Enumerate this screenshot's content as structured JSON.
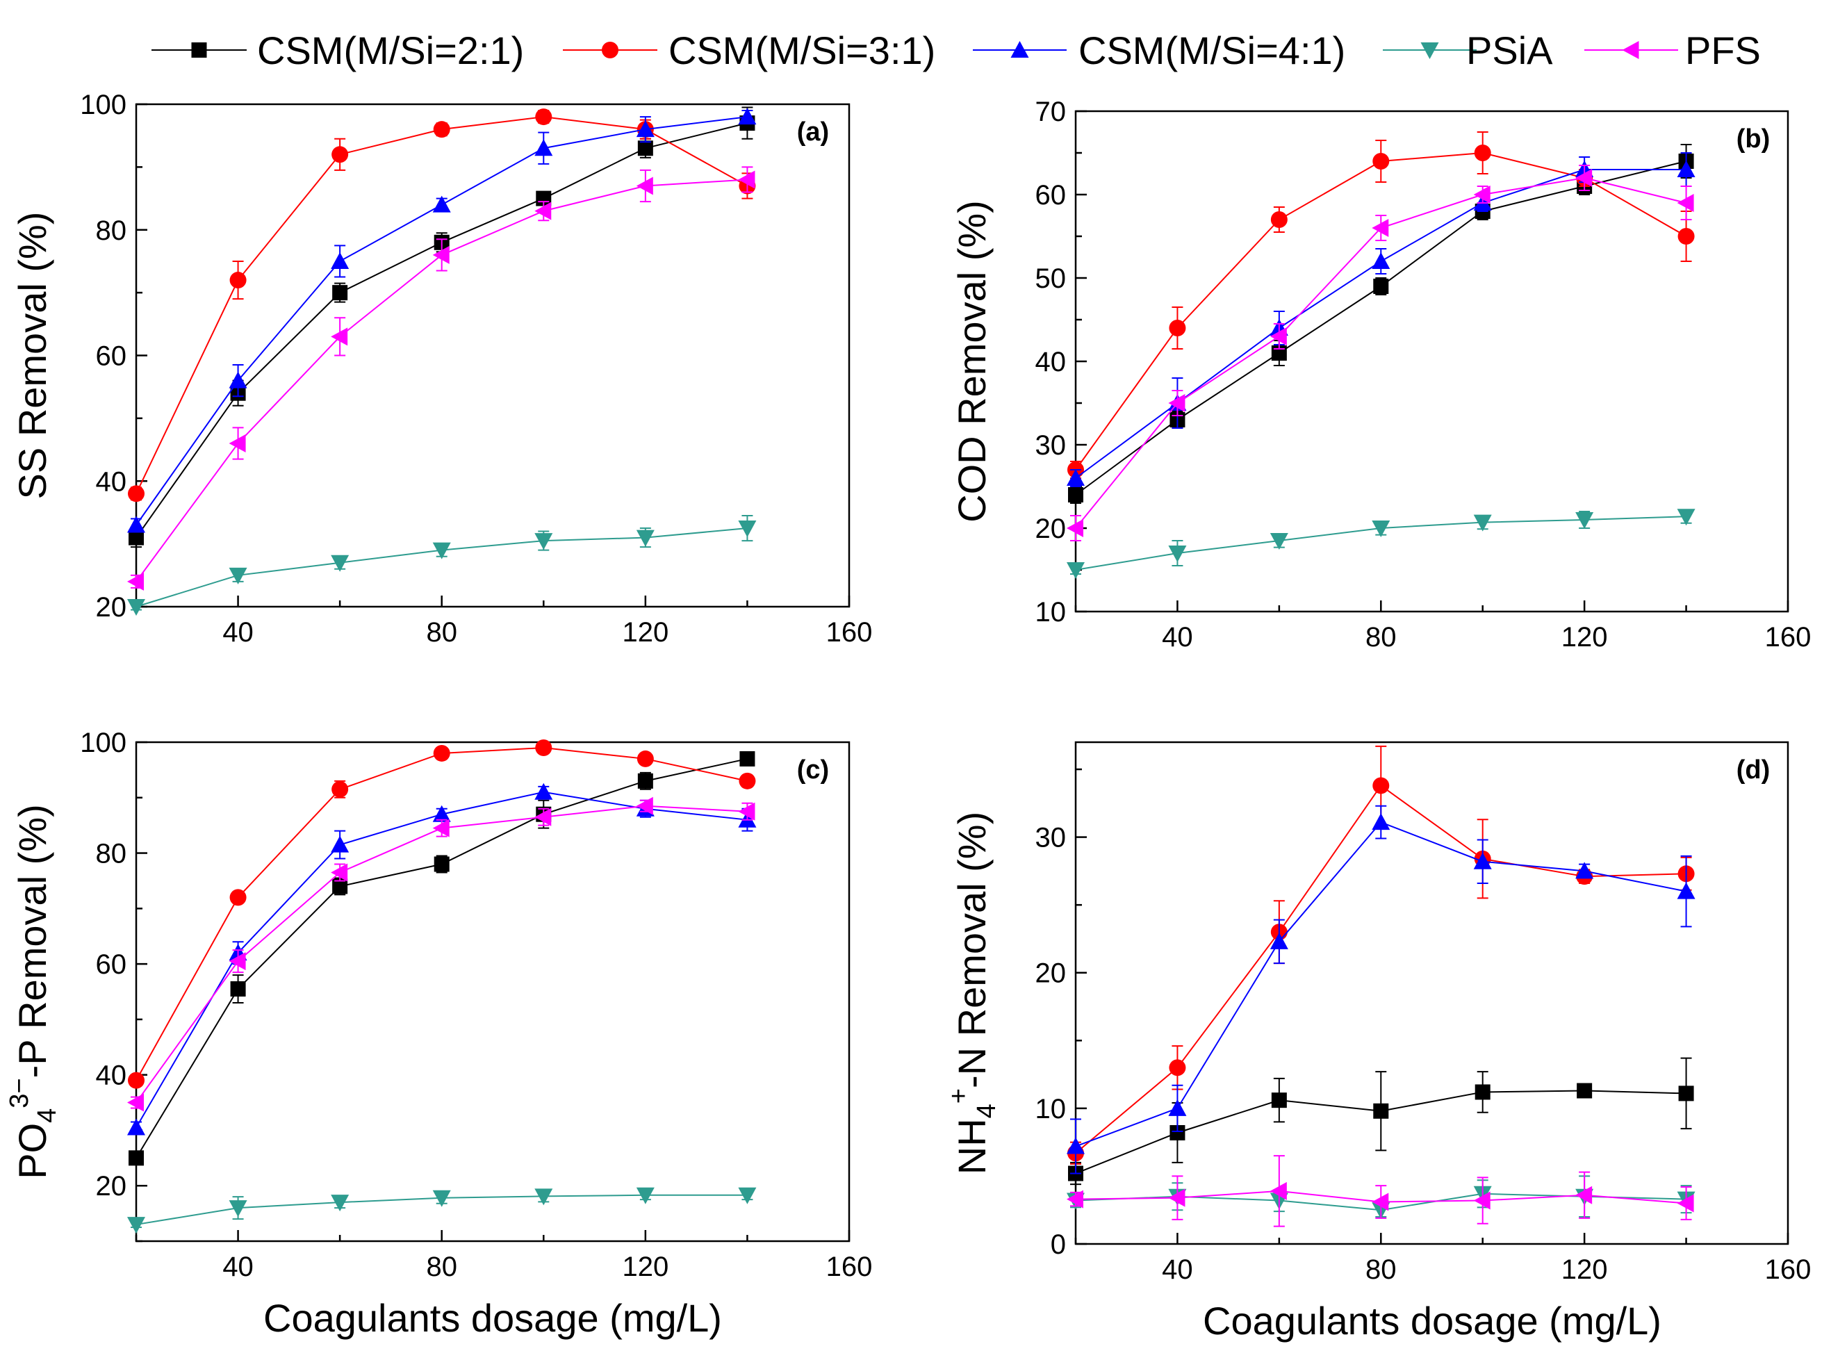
{
  "legend": {
    "placement": "top",
    "entries": [
      {
        "name": "CSM(M/Si=2:1)",
        "color": "#000000",
        "marker": "square"
      },
      {
        "name": "CSM(M/Si=3:1)",
        "color": "#ff0000",
        "marker": "circle"
      },
      {
        "name": "CSM(M/Si=4:1)",
        "color": "#0000ff",
        "marker": "triangle-up"
      },
      {
        "name": "PSiA",
        "color": "#2e9c8f",
        "marker": "triangle-down"
      },
      {
        "name": "PFS",
        "color": "#ff00ff",
        "marker": "triangle-left"
      }
    ]
  },
  "chart_data": [
    {
      "type": "line",
      "panel": "(a)",
      "xlabel": "",
      "ylabel": "SS Removal (%)",
      "xlim": [
        20,
        160
      ],
      "ylim": [
        20,
        100
      ],
      "xticks": [
        40,
        80,
        120,
        160
      ],
      "yticks": [
        20,
        40,
        60,
        80,
        100
      ],
      "x": [
        20,
        40,
        60,
        80,
        100,
        120,
        140
      ],
      "series": [
        {
          "name": "CSM(M/Si=2:1)",
          "values": [
            31,
            54,
            70,
            78,
            85,
            93,
            97
          ],
          "errors": [
            1.5,
            2,
            1.5,
            1.5,
            1,
            1.5,
            2.5
          ]
        },
        {
          "name": "CSM(M/Si=3:1)",
          "values": [
            38,
            72,
            92,
            96,
            98,
            96,
            87
          ],
          "errors": [
            1,
            3,
            2.5,
            1,
            1,
            1.5,
            2
          ]
        },
        {
          "name": "CSM(M/Si=4:1)",
          "values": [
            33,
            56,
            75,
            84,
            93,
            96,
            98
          ],
          "errors": [
            1,
            2.5,
            2.5,
            1,
            2.5,
            2,
            1
          ]
        },
        {
          "name": "PSiA",
          "values": [
            20,
            25,
            27,
            29,
            30.5,
            31,
            32.5
          ],
          "errors": [
            0.5,
            1,
            1,
            1,
            1.5,
            1.5,
            2
          ]
        },
        {
          "name": "PFS",
          "values": [
            24,
            46,
            63,
            76,
            83,
            87,
            88
          ],
          "errors": [
            1,
            2.5,
            3,
            2.5,
            1.5,
            2.5,
            2
          ]
        }
      ]
    },
    {
      "type": "line",
      "panel": "(b)",
      "xlabel": "",
      "ylabel": "COD Removal (%)",
      "xlim": [
        20,
        160
      ],
      "ylim": [
        10,
        70
      ],
      "xticks": [
        40,
        80,
        120,
        160
      ],
      "yticks": [
        10,
        20,
        30,
        40,
        50,
        60,
        70
      ],
      "x": [
        20,
        40,
        60,
        80,
        100,
        120,
        140
      ],
      "series": [
        {
          "name": "CSM(M/Si=2:1)",
          "values": [
            24,
            33,
            41,
            49,
            58,
            61,
            64
          ],
          "errors": [
            1,
            1,
            1.5,
            1,
            1,
            1,
            2
          ]
        },
        {
          "name": "CSM(M/Si=3:1)",
          "values": [
            27,
            44,
            57,
            64,
            65,
            62,
            55
          ],
          "errors": [
            1,
            2.5,
            1.5,
            2.5,
            2.5,
            1,
            3
          ]
        },
        {
          "name": "CSM(M/Si=4:1)",
          "values": [
            26,
            35,
            44,
            52,
            59,
            63,
            63
          ],
          "errors": [
            1,
            3,
            2,
            1.5,
            1,
            1.5,
            2
          ]
        },
        {
          "name": "PSiA",
          "values": [
            15,
            17,
            18.5,
            20,
            20.7,
            21,
            21.4
          ],
          "errors": [
            0.5,
            1.5,
            0.8,
            0.8,
            0.8,
            1,
            0.8
          ]
        },
        {
          "name": "PFS",
          "values": [
            20,
            35,
            43,
            56,
            60,
            62,
            59
          ],
          "errors": [
            1.5,
            1.5,
            1.5,
            1.5,
            1,
            1.5,
            2
          ]
        }
      ]
    },
    {
      "type": "line",
      "panel": "(c)",
      "xlabel": "Coagulants dosage (mg/L)",
      "ylabel": "PO4 3− -P Removal (%)",
      "xlim": [
        20,
        160
      ],
      "ylim": [
        10,
        100
      ],
      "xticks": [
        40,
        80,
        120,
        160
      ],
      "yticks": [
        20,
        40,
        60,
        80,
        100
      ],
      "x": [
        20,
        40,
        60,
        80,
        100,
        120,
        140
      ],
      "series": [
        {
          "name": "CSM(M/Si=2:1)",
          "values": [
            25,
            55.5,
            74,
            78,
            87,
            93,
            97
          ],
          "errors": [
            1,
            2.5,
            1.5,
            1.5,
            2.5,
            1.5,
            1
          ]
        },
        {
          "name": "CSM(M/Si=3:1)",
          "values": [
            39,
            72,
            91.5,
            98,
            99,
            97,
            93
          ],
          "errors": [
            1,
            1,
            1.5,
            1,
            1,
            1,
            1
          ]
        },
        {
          "name": "CSM(M/Si=4:1)",
          "values": [
            30.5,
            62,
            81.5,
            87,
            91,
            88,
            86
          ],
          "errors": [
            1,
            2,
            2.5,
            1,
            1,
            1.5,
            2
          ]
        },
        {
          "name": "PSiA",
          "values": [
            13,
            16,
            17,
            17.8,
            18.1,
            18.3,
            18.3
          ],
          "errors": [
            0.5,
            2,
            1,
            1,
            1,
            0.8,
            0.8
          ]
        },
        {
          "name": "PFS",
          "values": [
            35,
            60.5,
            76.5,
            84.5,
            86.5,
            88.5,
            87.5
          ],
          "errors": [
            1,
            2,
            1.5,
            1.5,
            1.5,
            1,
            1.5
          ]
        }
      ]
    },
    {
      "type": "line",
      "panel": "(d)",
      "xlabel": "Coagulants dosage (mg/L)",
      "ylabel": "NH4 + -N Removal (%)",
      "xlim": [
        20,
        160
      ],
      "ylim": [
        0,
        37
      ],
      "xticks": [
        40,
        80,
        120,
        160
      ],
      "yticks": [
        0,
        10,
        20,
        30
      ],
      "x": [
        20,
        40,
        60,
        80,
        100,
        120,
        140
      ],
      "series": [
        {
          "name": "CSM(M/Si=2:1)",
          "values": [
            5.2,
            8.2,
            10.6,
            9.8,
            11.2,
            11.3,
            11.1
          ],
          "errors": [
            0.8,
            2.2,
            1.6,
            2.9,
            1.5,
            0.4,
            2.6
          ]
        },
        {
          "name": "CSM(M/Si=3:1)",
          "values": [
            6.7,
            13,
            23,
            33.8,
            28.4,
            27.1,
            27.3
          ],
          "errors": [
            0.8,
            1.6,
            2.3,
            2.9,
            2.9,
            0.5,
            1.2
          ]
        },
        {
          "name": "CSM(M/Si=4:1)",
          "values": [
            7.2,
            10,
            22.3,
            31.1,
            28.2,
            27.5,
            26
          ],
          "errors": [
            2,
            1.7,
            1.6,
            1.2,
            1.6,
            0.5,
            2.6
          ]
        },
        {
          "name": "PSiA",
          "values": [
            3.2,
            3.5,
            3.2,
            2.5,
            3.7,
            3.5,
            3.3
          ],
          "errors": [
            0.5,
            1,
            0.8,
            0.5,
            1,
            1.5,
            1
          ]
        },
        {
          "name": "PFS",
          "values": [
            3.3,
            3.4,
            3.9,
            3.1,
            3.2,
            3.6,
            3.0
          ],
          "errors": [
            0.5,
            1.6,
            2.6,
            1.2,
            1.7,
            1.7,
            1.2
          ]
        }
      ]
    }
  ]
}
